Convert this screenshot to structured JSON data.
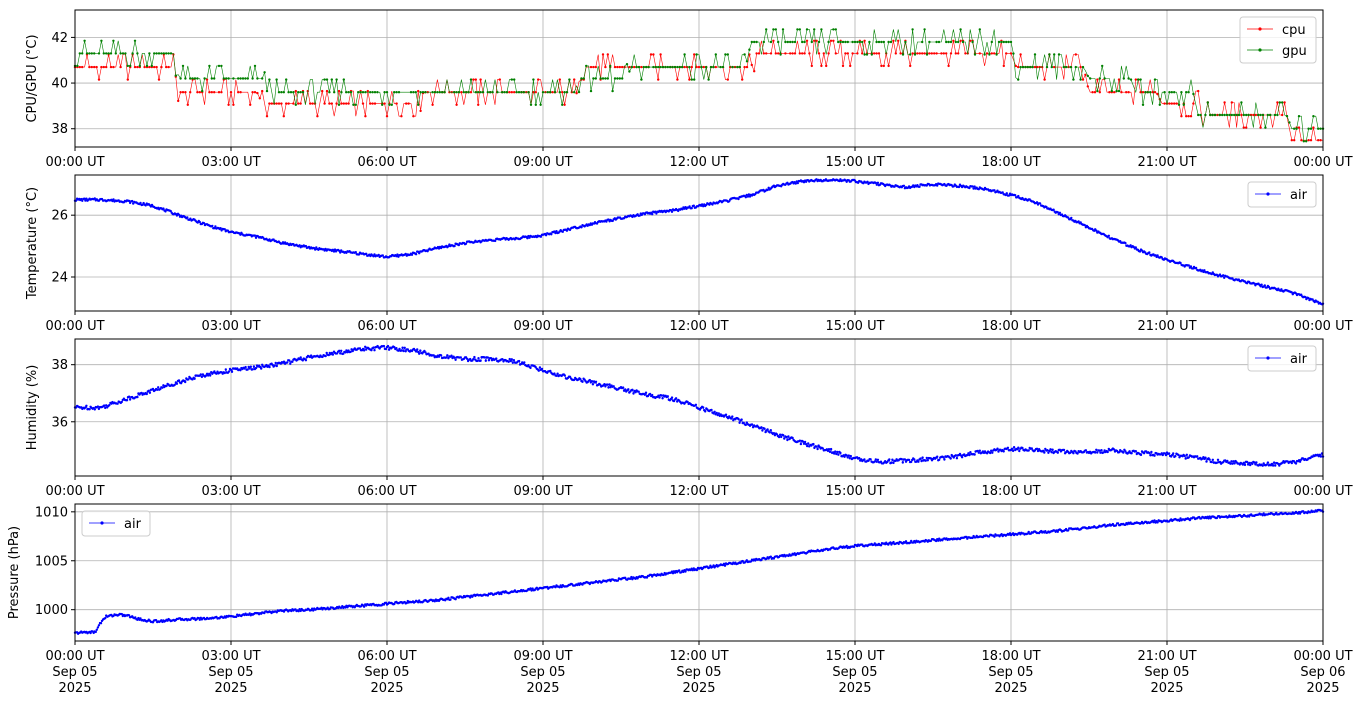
{
  "chart_data": [
    {
      "type": "line",
      "ylabel": "CPU/GPU (°C)",
      "ylim": [
        37.2,
        43.2
      ],
      "yticks": [
        38,
        40,
        42
      ],
      "xlim": [
        "2025-09-05 00:00",
        "2025-09-06 00:00"
      ],
      "xticks": [
        "00:00 UT",
        "03:00 UT",
        "06:00 UT",
        "09:00 UT",
        "12:00 UT",
        "15:00 UT",
        "18:00 UT",
        "21:00 UT",
        "00:00 UT"
      ],
      "grid": true,
      "legend": "top-right",
      "series": [
        {
          "name": "cpu",
          "color": "#ff0000",
          "x_hours": [
            0,
            1.9,
            2.0,
            3.5,
            3.6,
            6.6,
            6.7,
            9.6,
            9.7,
            13.0,
            13.1,
            18.0,
            18.1,
            19.4,
            19.5,
            20.8,
            20.9,
            21.6,
            21.7,
            23.3,
            23.4,
            24
          ],
          "y": [
            40.7,
            40.7,
            39.6,
            39.6,
            39.1,
            39.1,
            39.6,
            39.6,
            40.7,
            40.7,
            41.3,
            41.3,
            40.7,
            40.7,
            39.6,
            39.6,
            39.1,
            39.1,
            38.6,
            38.6,
            37.5,
            37.5
          ]
        },
        {
          "name": "gpu",
          "color": "#008000",
          "x_hours": [
            0,
            1.9,
            2.0,
            3.6,
            3.7,
            9.6,
            9.7,
            10.6,
            10.7,
            12.9,
            13.0,
            18.0,
            18.1,
            19.4,
            19.5,
            20.3,
            20.4,
            21.5,
            21.6,
            23.3,
            23.4,
            24
          ],
          "y": [
            41.3,
            41.3,
            40.2,
            40.2,
            39.6,
            39.6,
            40.2,
            40.2,
            40.7,
            40.7,
            41.8,
            41.8,
            40.7,
            40.7,
            40.2,
            40.2,
            39.6,
            39.6,
            38.6,
            38.6,
            38.0,
            38.0
          ]
        }
      ]
    },
    {
      "type": "line",
      "ylabel": "Temperature (°C)",
      "ylim": [
        22.9,
        27.3
      ],
      "yticks": [
        24,
        26
      ],
      "xlim": [
        "2025-09-05 00:00",
        "2025-09-06 00:00"
      ],
      "xticks": [
        "00:00 UT",
        "03:00 UT",
        "06:00 UT",
        "09:00 UT",
        "12:00 UT",
        "15:00 UT",
        "18:00 UT",
        "21:00 UT",
        "00:00 UT"
      ],
      "grid": true,
      "legend": "top-right",
      "series": [
        {
          "name": "air",
          "color": "#0000ff",
          "x_hours": [
            0,
            0.5,
            1.0,
            1.5,
            2.0,
            2.5,
            3.0,
            3.5,
            4.0,
            4.5,
            5.0,
            5.5,
            6.0,
            6.5,
            7.0,
            7.5,
            8.0,
            8.5,
            9.0,
            9.5,
            10.0,
            10.5,
            11.0,
            11.5,
            12.0,
            12.5,
            13.0,
            13.5,
            14.0,
            14.5,
            15.0,
            15.5,
            16.0,
            16.5,
            17.0,
            17.5,
            18.0,
            18.5,
            19.0,
            19.5,
            20.0,
            20.5,
            21.0,
            21.5,
            22.0,
            22.5,
            23.0,
            23.5,
            24.0
          ],
          "y": [
            26.5,
            26.5,
            26.45,
            26.3,
            26.0,
            25.7,
            25.45,
            25.3,
            25.1,
            24.95,
            24.85,
            24.75,
            24.65,
            24.75,
            24.95,
            25.1,
            25.2,
            25.25,
            25.35,
            25.55,
            25.75,
            25.9,
            26.05,
            26.15,
            26.3,
            26.45,
            26.65,
            26.95,
            27.1,
            27.15,
            27.1,
            27.0,
            26.9,
            27.0,
            26.95,
            26.85,
            26.65,
            26.4,
            26.0,
            25.6,
            25.2,
            24.85,
            24.55,
            24.3,
            24.05,
            23.85,
            23.65,
            23.45,
            23.1
          ]
        }
      ]
    },
    {
      "type": "line",
      "ylabel": "Humidity (%)",
      "ylim": [
        34.1,
        38.9
      ],
      "yticks": [
        36,
        38
      ],
      "xlim": [
        "2025-09-05 00:00",
        "2025-09-06 00:00"
      ],
      "xticks": [
        "00:00 UT",
        "03:00 UT",
        "06:00 UT",
        "09:00 UT",
        "12:00 UT",
        "15:00 UT",
        "18:00 UT",
        "21:00 UT",
        "00:00 UT"
      ],
      "grid": true,
      "legend": "top-right",
      "series": [
        {
          "name": "air",
          "color": "#0000ff",
          "x_hours": [
            0,
            0.5,
            1.0,
            1.5,
            2.0,
            2.5,
            3.0,
            3.5,
            4.0,
            4.5,
            5.0,
            5.5,
            6.0,
            6.5,
            7.0,
            7.5,
            8.0,
            8.5,
            9.0,
            9.5,
            10.0,
            10.5,
            11.0,
            11.5,
            12.0,
            12.5,
            13.0,
            13.5,
            14.0,
            14.5,
            15.0,
            15.5,
            16.0,
            16.5,
            17.0,
            17.5,
            18.0,
            18.5,
            19.0,
            19.5,
            20.0,
            20.5,
            21.0,
            21.5,
            22.0,
            22.5,
            23.0,
            23.5,
            24.0
          ],
          "y": [
            36.5,
            36.5,
            36.8,
            37.1,
            37.4,
            37.65,
            37.8,
            37.9,
            38.05,
            38.25,
            38.4,
            38.55,
            38.6,
            38.5,
            38.3,
            38.2,
            38.2,
            38.1,
            37.8,
            37.55,
            37.35,
            37.15,
            36.95,
            36.8,
            36.5,
            36.2,
            35.9,
            35.55,
            35.25,
            35.0,
            34.7,
            34.6,
            34.65,
            34.7,
            34.8,
            34.95,
            35.05,
            35.0,
            34.95,
            34.95,
            35.0,
            34.9,
            34.85,
            34.75,
            34.6,
            34.55,
            34.5,
            34.6,
            34.85
          ]
        }
      ]
    },
    {
      "type": "line",
      "ylabel": "Pressure (hPa)",
      "ylim": [
        996.8,
        1010.8
      ],
      "yticks": [
        1000,
        1005,
        1010
      ],
      "xlim": [
        "2025-09-05 00:00",
        "2025-09-06 00:00"
      ],
      "xticks": [
        "00:00 UT\nSep 05\n2025",
        "03:00 UT\nSep 05\n2025",
        "06:00 UT\nSep 05\n2025",
        "09:00 UT\nSep 05\n2025",
        "12:00 UT\nSep 05\n2025",
        "15:00 UT\nSep 05\n2025",
        "18:00 UT\nSep 05\n2025",
        "21:00 UT\nSep 05\n2025",
        "00:00 UT\nSep 06\n2025"
      ],
      "grid": true,
      "legend": "top-left",
      "series": [
        {
          "name": "air",
          "color": "#0000ff",
          "x_hours": [
            0,
            0.2,
            0.4,
            0.45,
            0.6,
            0.8,
            1.0,
            1.25,
            1.5,
            1.75,
            2.0,
            2.5,
            3.0,
            3.5,
            4.0,
            4.5,
            5.0,
            5.5,
            6.0,
            6.5,
            7.0,
            7.5,
            8.0,
            8.5,
            9.0,
            9.5,
            10.0,
            10.5,
            11.0,
            11.5,
            12.0,
            12.5,
            13.0,
            13.5,
            14.0,
            14.5,
            15.0,
            15.5,
            16.0,
            16.5,
            17.0,
            17.5,
            18.0,
            18.5,
            19.0,
            19.5,
            20.0,
            20.5,
            21.0,
            21.5,
            22.0,
            22.5,
            23.0,
            23.5,
            24.0
          ],
          "y": [
            997.6,
            997.7,
            997.7,
            998.4,
            999.3,
            999.5,
            999.4,
            999.0,
            998.8,
            998.9,
            999.0,
            999.1,
            999.3,
            999.6,
            999.9,
            1000.0,
            1000.2,
            1000.4,
            1000.6,
            1000.8,
            1001.0,
            1001.3,
            1001.6,
            1001.9,
            1002.2,
            1002.5,
            1002.8,
            1003.1,
            1003.4,
            1003.8,
            1004.2,
            1004.6,
            1005.0,
            1005.4,
            1005.8,
            1006.2,
            1006.5,
            1006.7,
            1006.9,
            1007.1,
            1007.3,
            1007.5,
            1007.7,
            1007.9,
            1008.1,
            1008.4,
            1008.7,
            1008.9,
            1009.1,
            1009.3,
            1009.5,
            1009.6,
            1009.8,
            1009.9,
            1010.1
          ]
        }
      ]
    }
  ]
}
